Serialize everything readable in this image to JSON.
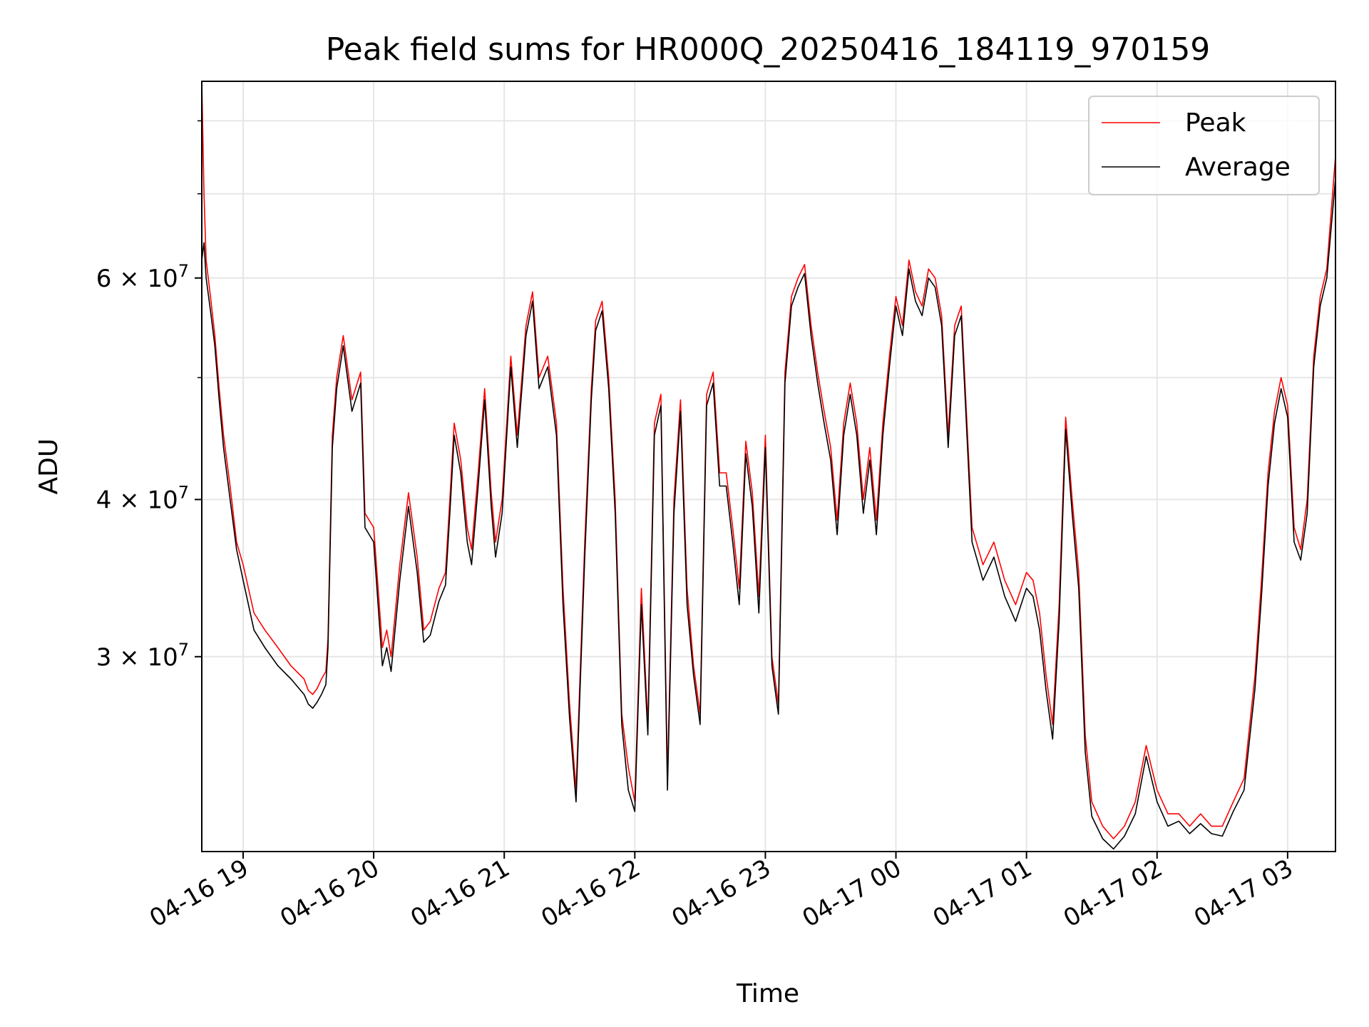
{
  "chart_data": {
    "type": "line",
    "title": "Peak field sums for HR000Q_20250416_184119_970159",
    "xlabel": "Time",
    "ylabel": "ADU",
    "y_scale": "log",
    "ylim": [
      21000000,
      86000000
    ],
    "xlim": [
      "2025-04-16 18:41",
      "2025-04-17 03:22"
    ],
    "grid": true,
    "legend_position": "top-right",
    "x_ticks": [
      "04-16 19",
      "04-16 20",
      "04-16 21",
      "04-16 22",
      "04-16 23",
      "04-17 00",
      "04-17 01",
      "04-17 02",
      "04-17 03"
    ],
    "x_tick_times": [
      "2025-04-16 19:00",
      "2025-04-16 20:00",
      "2025-04-16 21:00",
      "2025-04-16 22:00",
      "2025-04-16 23:00",
      "2025-04-17 00:00",
      "2025-04-17 01:00",
      "2025-04-17 02:00",
      "2025-04-17 03:00"
    ],
    "y_ticks": [
      {
        "value": 30000000,
        "mantissa": "3",
        "exponent": "7"
      },
      {
        "value": 40000000,
        "mantissa": "4",
        "exponent": "7"
      },
      {
        "value": 60000000,
        "mantissa": "6",
        "exponent": "7"
      }
    ],
    "y_minor_ticks": [
      50000000,
      70000000,
      80000000
    ],
    "series": [
      {
        "name": "Peak",
        "color": "#ff0000",
        "x": [
          "2025-04-16 18:41",
          "2025-04-16 18:42",
          "2025-04-16 18:43",
          "2025-04-16 18:45",
          "2025-04-16 18:47",
          "2025-04-16 18:49",
          "2025-04-16 18:51",
          "2025-04-16 18:54",
          "2025-04-16 18:57",
          "2025-04-16 19:00",
          "2025-04-16 19:05",
          "2025-04-16 19:10",
          "2025-04-16 19:16",
          "2025-04-16 19:22",
          "2025-04-16 19:28",
          "2025-04-16 19:30",
          "2025-04-16 19:32",
          "2025-04-16 19:34",
          "2025-04-16 19:36",
          "2025-04-16 19:38",
          "2025-04-16 19:39",
          "2025-04-16 19:41",
          "2025-04-16 19:43",
          "2025-04-16 19:46",
          "2025-04-16 19:50",
          "2025-04-16 19:54",
          "2025-04-16 19:56",
          "2025-04-16 20:00",
          "2025-04-16 20:04",
          "2025-04-16 20:06",
          "2025-04-16 20:08",
          "2025-04-16 20:12",
          "2025-04-16 20:16",
          "2025-04-16 20:20",
          "2025-04-16 20:23",
          "2025-04-16 20:26",
          "2025-04-16 20:30",
          "2025-04-16 20:33",
          "2025-04-16 20:35",
          "2025-04-16 20:37",
          "2025-04-16 20:40",
          "2025-04-16 20:43",
          "2025-04-16 20:45",
          "2025-04-16 20:48",
          "2025-04-16 20:51",
          "2025-04-16 20:54",
          "2025-04-16 20:56",
          "2025-04-16 20:59",
          "2025-04-16 21:03",
          "2025-04-16 21:06",
          "2025-04-16 21:10",
          "2025-04-16 21:13",
          "2025-04-16 21:16",
          "2025-04-16 21:20",
          "2025-04-16 21:24",
          "2025-04-16 21:27",
          "2025-04-16 21:30",
          "2025-04-16 21:33",
          "2025-04-16 21:37",
          "2025-04-16 21:40",
          "2025-04-16 21:42",
          "2025-04-16 21:45",
          "2025-04-16 21:48",
          "2025-04-16 21:51",
          "2025-04-16 21:54",
          "2025-04-16 21:57",
          "2025-04-16 22:00",
          "2025-04-16 22:03",
          "2025-04-16 22:06",
          "2025-04-16 22:09",
          "2025-04-16 22:12",
          "2025-04-16 22:15",
          "2025-04-16 22:18",
          "2025-04-16 22:21",
          "2025-04-16 22:24",
          "2025-04-16 22:27",
          "2025-04-16 22:30",
          "2025-04-16 22:33",
          "2025-04-16 22:36",
          "2025-04-16 22:39",
          "2025-04-16 22:42",
          "2025-04-16 22:45",
          "2025-04-16 22:48",
          "2025-04-16 22:51",
          "2025-04-16 22:54",
          "2025-04-16 22:57",
          "2025-04-16 23:00",
          "2025-04-16 23:03",
          "2025-04-16 23:06",
          "2025-04-16 23:09",
          "2025-04-16 23:12",
          "2025-04-16 23:15",
          "2025-04-16 23:18",
          "2025-04-16 23:21",
          "2025-04-16 23:24",
          "2025-04-16 23:27",
          "2025-04-16 23:30",
          "2025-04-16 23:33",
          "2025-04-16 23:36",
          "2025-04-16 23:39",
          "2025-04-16 23:42",
          "2025-04-16 23:45",
          "2025-04-16 23:48",
          "2025-04-16 23:51",
          "2025-04-16 23:54",
          "2025-04-16 23:57",
          "2025-04-17 00:00",
          "2025-04-17 00:03",
          "2025-04-17 00:06",
          "2025-04-17 00:09",
          "2025-04-17 00:12",
          "2025-04-17 00:15",
          "2025-04-17 00:18",
          "2025-04-17 00:21",
          "2025-04-17 00:24",
          "2025-04-17 00:27",
          "2025-04-17 00:30",
          "2025-04-17 00:35",
          "2025-04-17 00:40",
          "2025-04-17 00:45",
          "2025-04-17 00:50",
          "2025-04-17 00:55",
          "2025-04-17 01:00",
          "2025-04-17 01:03",
          "2025-04-17 01:06",
          "2025-04-17 01:09",
          "2025-04-17 01:12",
          "2025-04-17 01:15",
          "2025-04-17 01:18",
          "2025-04-17 01:21",
          "2025-04-17 01:24",
          "2025-04-17 01:27",
          "2025-04-17 01:30",
          "2025-04-17 01:35",
          "2025-04-17 01:40",
          "2025-04-17 01:45",
          "2025-04-17 01:50",
          "2025-04-17 01:55",
          "2025-04-17 02:00",
          "2025-04-17 02:05",
          "2025-04-17 02:10",
          "2025-04-17 02:15",
          "2025-04-17 02:20",
          "2025-04-17 02:25",
          "2025-04-17 02:30",
          "2025-04-17 02:35",
          "2025-04-17 02:40",
          "2025-04-17 02:45",
          "2025-04-17 02:48",
          "2025-04-17 02:51",
          "2025-04-17 02:54",
          "2025-04-17 02:57",
          "2025-04-17 03:00",
          "2025-04-17 03:03",
          "2025-04-17 03:06",
          "2025-04-17 03:09",
          "2025-04-17 03:12",
          "2025-04-17 03:15",
          "2025-04-17 03:18",
          "2025-04-17 03:22"
        ],
        "values": [
          86000000,
          70000000,
          62000000,
          58000000,
          54000000,
          49000000,
          45000000,
          41000000,
          37000000,
          35500000,
          32500000,
          31500000,
          30500000,
          29500000,
          28800000,
          28200000,
          28000000,
          28300000,
          28800000,
          29200000,
          31000000,
          45000000,
          50000000,
          54000000,
          48000000,
          50500000,
          39000000,
          38000000,
          30500000,
          31500000,
          30000000,
          35500000,
          40500000,
          36000000,
          31500000,
          32000000,
          34000000,
          35000000,
          40000000,
          46000000,
          43000000,
          38000000,
          36500000,
          42000000,
          49000000,
          40500000,
          37000000,
          40000000,
          52000000,
          45000000,
          55000000,
          58500000,
          50000000,
          52000000,
          46000000,
          34000000,
          27500000,
          23500000,
          37000000,
          49000000,
          55500000,
          57500000,
          50000000,
          40000000,
          27000000,
          24500000,
          23000000,
          34000000,
          26500000,
          46000000,
          48500000,
          24000000,
          40000000,
          48000000,
          34000000,
          29500000,
          27000000,
          48500000,
          50500000,
          42000000,
          42000000,
          38000000,
          34000000,
          44500000,
          40500000,
          33500000,
          45000000,
          30000000,
          27500000,
          50500000,
          58000000,
          60000000,
          61500000,
          55000000,
          50500000,
          47000000,
          44000000,
          38500000,
          46000000,
          49500000,
          46000000,
          40000000,
          44000000,
          38500000,
          46000000,
          52000000,
          58000000,
          55000000,
          62000000,
          58500000,
          57000000,
          61000000,
          60000000,
          56000000,
          45000000,
          55000000,
          57000000,
          38000000,
          35500000,
          37000000,
          34500000,
          33000000,
          35000000,
          34500000,
          32500000,
          29000000,
          26500000,
          33000000,
          46500000,
          40000000,
          35000000,
          26000000,
          23000000,
          22000000,
          21500000,
          22000000,
          23000000,
          25500000,
          23500000,
          22500000,
          22500000,
          22000000,
          22500000,
          22000000,
          22000000,
          23000000,
          24000000,
          29000000,
          34500000,
          42000000,
          47000000,
          50000000,
          47500000,
          38000000,
          36500000,
          40000000,
          52000000,
          58000000,
          61000000,
          75000000
        ]
      },
      {
        "name": "Average",
        "color": "#000000",
        "x": [
          "2025-04-16 18:41",
          "2025-04-16 18:42",
          "2025-04-16 18:43",
          "2025-04-16 18:45",
          "2025-04-16 18:47",
          "2025-04-16 18:49",
          "2025-04-16 18:51",
          "2025-04-16 18:54",
          "2025-04-16 18:57",
          "2025-04-16 19:00",
          "2025-04-16 19:05",
          "2025-04-16 19:10",
          "2025-04-16 19:16",
          "2025-04-16 19:22",
          "2025-04-16 19:28",
          "2025-04-16 19:30",
          "2025-04-16 19:32",
          "2025-04-16 19:34",
          "2025-04-16 19:36",
          "2025-04-16 19:38",
          "2025-04-16 19:39",
          "2025-04-16 19:41",
          "2025-04-16 19:43",
          "2025-04-16 19:46",
          "2025-04-16 19:50",
          "2025-04-16 19:54",
          "2025-04-16 19:56",
          "2025-04-16 20:00",
          "2025-04-16 20:04",
          "2025-04-16 20:06",
          "2025-04-16 20:08",
          "2025-04-16 20:12",
          "2025-04-16 20:16",
          "2025-04-16 20:20",
          "2025-04-16 20:23",
          "2025-04-16 20:26",
          "2025-04-16 20:30",
          "2025-04-16 20:33",
          "2025-04-16 20:35",
          "2025-04-16 20:37",
          "2025-04-16 20:40",
          "2025-04-16 20:43",
          "2025-04-16 20:45",
          "2025-04-16 20:48",
          "2025-04-16 20:51",
          "2025-04-16 20:54",
          "2025-04-16 20:56",
          "2025-04-16 20:59",
          "2025-04-16 21:03",
          "2025-04-16 21:06",
          "2025-04-16 21:10",
          "2025-04-16 21:13",
          "2025-04-16 21:16",
          "2025-04-16 21:20",
          "2025-04-16 21:24",
          "2025-04-16 21:27",
          "2025-04-16 21:30",
          "2025-04-16 21:33",
          "2025-04-16 21:37",
          "2025-04-16 21:40",
          "2025-04-16 21:42",
          "2025-04-16 21:45",
          "2025-04-16 21:48",
          "2025-04-16 21:51",
          "2025-04-16 21:54",
          "2025-04-16 21:57",
          "2025-04-16 22:00",
          "2025-04-16 22:03",
          "2025-04-16 22:06",
          "2025-04-16 22:09",
          "2025-04-16 22:12",
          "2025-04-16 22:15",
          "2025-04-16 22:18",
          "2025-04-16 22:21",
          "2025-04-16 22:24",
          "2025-04-16 22:27",
          "2025-04-16 22:30",
          "2025-04-16 22:33",
          "2025-04-16 22:36",
          "2025-04-16 22:39",
          "2025-04-16 22:42",
          "2025-04-16 22:45",
          "2025-04-16 22:48",
          "2025-04-16 22:51",
          "2025-04-16 22:54",
          "2025-04-16 22:57",
          "2025-04-16 23:00",
          "2025-04-16 23:03",
          "2025-04-16 23:06",
          "2025-04-16 23:09",
          "2025-04-16 23:12",
          "2025-04-16 23:15",
          "2025-04-16 23:18",
          "2025-04-16 23:21",
          "2025-04-16 23:24",
          "2025-04-16 23:27",
          "2025-04-16 23:30",
          "2025-04-16 23:33",
          "2025-04-16 23:36",
          "2025-04-16 23:39",
          "2025-04-16 23:42",
          "2025-04-16 23:45",
          "2025-04-16 23:48",
          "2025-04-16 23:51",
          "2025-04-16 23:54",
          "2025-04-16 23:57",
          "2025-04-17 00:00",
          "2025-04-17 00:03",
          "2025-04-17 00:06",
          "2025-04-17 00:09",
          "2025-04-17 00:12",
          "2025-04-17 00:15",
          "2025-04-17 00:18",
          "2025-04-17 00:21",
          "2025-04-17 00:24",
          "2025-04-17 00:27",
          "2025-04-17 00:30",
          "2025-04-17 00:35",
          "2025-04-17 00:40",
          "2025-04-17 00:45",
          "2025-04-17 00:50",
          "2025-04-17 00:55",
          "2025-04-17 01:00",
          "2025-04-17 01:03",
          "2025-04-17 01:06",
          "2025-04-17 01:09",
          "2025-04-17 01:12",
          "2025-04-17 01:15",
          "2025-04-17 01:18",
          "2025-04-17 01:21",
          "2025-04-17 01:24",
          "2025-04-17 01:27",
          "2025-04-17 01:30",
          "2025-04-17 01:35",
          "2025-04-17 01:40",
          "2025-04-17 01:45",
          "2025-04-17 01:50",
          "2025-04-17 01:55",
          "2025-04-17 02:00",
          "2025-04-17 02:05",
          "2025-04-17 02:10",
          "2025-04-17 02:15",
          "2025-04-17 02:20",
          "2025-04-17 02:25",
          "2025-04-17 02:30",
          "2025-04-17 02:35",
          "2025-04-17 02:40",
          "2025-04-17 02:45",
          "2025-04-17 02:48",
          "2025-04-17 02:51",
          "2025-04-17 02:54",
          "2025-04-17 02:57",
          "2025-04-17 03:00",
          "2025-04-17 03:03",
          "2025-04-17 03:06",
          "2025-04-17 03:09",
          "2025-04-17 03:12",
          "2025-04-17 03:15",
          "2025-04-17 03:18",
          "2025-04-17 03:22"
        ],
        "values": [
          62000000,
          64000000,
          60000000,
          56500000,
          53000000,
          48000000,
          44000000,
          40000000,
          36500000,
          34500000,
          31500000,
          30500000,
          29500000,
          28800000,
          28000000,
          27500000,
          27300000,
          27600000,
          28000000,
          28500000,
          30500000,
          44000000,
          49000000,
          53000000,
          47000000,
          49500000,
          38000000,
          37000000,
          29500000,
          30500000,
          29200000,
          34500000,
          39500000,
          35000000,
          30800000,
          31200000,
          33200000,
          34200000,
          39000000,
          45000000,
          42000000,
          37000000,
          35500000,
          41000000,
          48000000,
          39500000,
          36000000,
          39000000,
          51000000,
          44000000,
          54000000,
          57500000,
          49000000,
          51000000,
          45000000,
          33000000,
          26800000,
          23000000,
          36000000,
          48000000,
          54500000,
          56500000,
          49000000,
          39000000,
          26500000,
          23500000,
          22600000,
          33000000,
          26000000,
          45000000,
          47500000,
          23500000,
          39000000,
          47000000,
          33000000,
          29000000,
          26500000,
          47500000,
          49500000,
          41000000,
          41000000,
          37000000,
          33000000,
          43500000,
          39500000,
          32500000,
          44000000,
          29500000,
          27000000,
          49500000,
          57000000,
          59000000,
          60500000,
          54000000,
          49500000,
          46000000,
          43000000,
          37500000,
          45000000,
          48500000,
          45000000,
          39000000,
          43000000,
          37500000,
          45000000,
          51000000,
          57000000,
          54000000,
          61000000,
          57500000,
          56000000,
          60000000,
          59000000,
          55000000,
          44000000,
          54000000,
          56000000,
          37000000,
          34500000,
          36000000,
          33500000,
          32000000,
          34000000,
          33500000,
          31500000,
          28200000,
          25800000,
          32000000,
          45500000,
          39000000,
          34000000,
          25200000,
          22400000,
          21500000,
          21100000,
          21600000,
          22500000,
          25000000,
          23000000,
          22000000,
          22200000,
          21700000,
          22100000,
          21700000,
          21600000,
          22600000,
          23500000,
          28300000,
          33500000,
          41000000,
          46000000,
          49000000,
          46500000,
          37000000,
          35800000,
          39000000,
          51000000,
          57000000,
          60000000,
          72000000
        ]
      }
    ]
  }
}
